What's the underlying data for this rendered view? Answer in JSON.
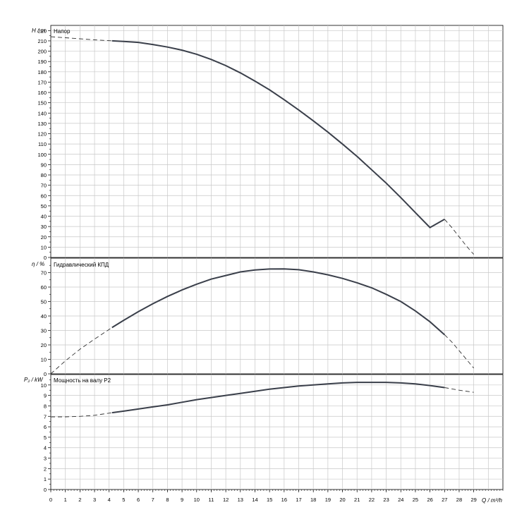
{
  "chart_data": [
    {
      "type": "line",
      "panel": "head",
      "ylabel": "H / m",
      "title": "Напор",
      "xlim": [
        0,
        31
      ],
      "ylim": [
        0,
        225
      ],
      "ytick_labels": [
        "0",
        "10",
        "20",
        "30",
        "40",
        "50",
        "60",
        "70",
        "80",
        "90",
        "100",
        "110",
        "120",
        "130",
        "140",
        "150",
        "160",
        "170",
        "180",
        "190",
        "200",
        "210",
        "220"
      ],
      "series": [
        {
          "solid_x": [
            4.2,
            5,
            6,
            7,
            8,
            9,
            10,
            11,
            12,
            13,
            14,
            15,
            16,
            17,
            18,
            19,
            20,
            21,
            22,
            23,
            24,
            25,
            26,
            27
          ],
          "solid_y": [
            210,
            209.5,
            208.5,
            206.5,
            204,
            201,
            197,
            192,
            186,
            179,
            171,
            162.5,
            153,
            143,
            132.5,
            121.5,
            110,
            98,
            85,
            72,
            58,
            43.5,
            29,
            37
          ],
          "dashed_x": [
            0,
            1,
            2,
            3,
            4.2
          ],
          "dashed_y": [
            214,
            213,
            212,
            211,
            210
          ],
          "dashed_tail_x": [
            27,
            27.5,
            28,
            28.5,
            29
          ],
          "dashed_tail_y": [
            37,
            29,
            20,
            11,
            3
          ]
        }
      ]
    },
    {
      "type": "line",
      "panel": "efficiency",
      "ylabel": "η / %",
      "title": "Гидравлический КПД",
      "xlim": [
        0,
        31
      ],
      "ylim": [
        0,
        80
      ],
      "ytick_labels": [
        "0",
        "10",
        "20",
        "30",
        "40",
        "50",
        "60",
        "70"
      ],
      "series": [
        {
          "solid_x": [
            4.2,
            5,
            6,
            7,
            8,
            9,
            10,
            11,
            12,
            13,
            14,
            15,
            16,
            17,
            18,
            19,
            20,
            21,
            22,
            23,
            24,
            25,
            26,
            27
          ],
          "solid_y": [
            32,
            37,
            43,
            48.5,
            53.5,
            58,
            62,
            65.5,
            68,
            70.5,
            71.8,
            72.5,
            72.6,
            72,
            70.5,
            68.5,
            66,
            63,
            59.5,
            55,
            50,
            43.5,
            36,
            27
          ],
          "dashed_x": [
            0,
            1,
            2,
            3,
            4.2
          ],
          "dashed_y": [
            0,
            9,
            17,
            24,
            32
          ],
          "dashed_tail_x": [
            27,
            27.5,
            28,
            28.5,
            29
          ],
          "dashed_tail_y": [
            27,
            22,
            16,
            10,
            4
          ]
        }
      ]
    },
    {
      "type": "line",
      "panel": "power",
      "ylabel": "P₂ / kW",
      "title": "Мощность на валу P2",
      "xlabel": "Q / m³/h",
      "xlim": [
        0,
        31
      ],
      "ylim": [
        0,
        11
      ],
      "ytick_labels": [
        "0",
        "1",
        "2",
        "3",
        "4",
        "5",
        "6",
        "7",
        "8",
        "9",
        "10"
      ],
      "xtick_labels": [
        "0",
        "1",
        "2",
        "3",
        "4",
        "5",
        "6",
        "7",
        "8",
        "9",
        "10",
        "11",
        "12",
        "13",
        "14",
        "15",
        "16",
        "17",
        "18",
        "19",
        "20",
        "21",
        "22",
        "23",
        "24",
        "25",
        "26",
        "27",
        "28",
        "29"
      ],
      "series": [
        {
          "solid_x": [
            4.2,
            5,
            6,
            7,
            8,
            9,
            10,
            11,
            12,
            13,
            14,
            15,
            16,
            17,
            18,
            19,
            20,
            21,
            22,
            23,
            24,
            25,
            26,
            27
          ],
          "solid_y": [
            7.35,
            7.5,
            7.7,
            7.9,
            8.1,
            8.35,
            8.6,
            8.8,
            9.0,
            9.2,
            9.4,
            9.6,
            9.75,
            9.9,
            10.0,
            10.1,
            10.2,
            10.25,
            10.25,
            10.25,
            10.2,
            10.1,
            9.95,
            9.75
          ],
          "dashed_x": [
            0,
            1,
            2,
            3,
            4.2
          ],
          "dashed_y": [
            6.95,
            6.95,
            7.0,
            7.1,
            7.35
          ],
          "dashed_tail_x": [
            27,
            28,
            29
          ],
          "dashed_tail_y": [
            9.75,
            9.5,
            9.3
          ]
        }
      ]
    }
  ]
}
